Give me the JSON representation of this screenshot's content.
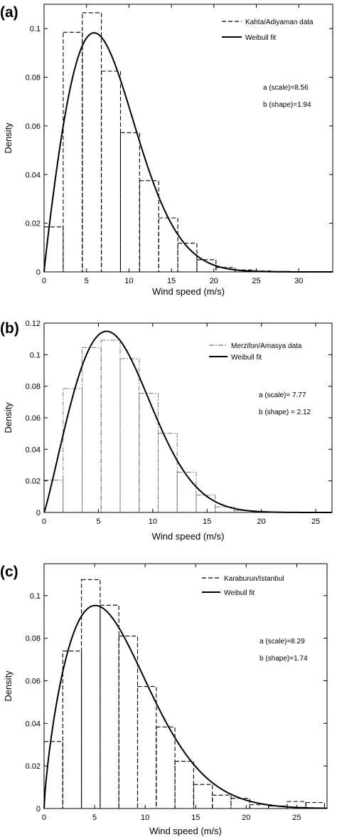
{
  "chart_data": [
    {
      "type": "bar",
      "panel_label": "(a)",
      "xlabel": "Wind speed (m/s)",
      "ylabel": "Density",
      "xlim": [
        0,
        34
      ],
      "ylim": [
        0,
        0.11
      ],
      "xticks": [
        0,
        5,
        10,
        15,
        20,
        25,
        30
      ],
      "yticks": [
        0,
        0.02,
        0.04,
        0.06,
        0.08,
        0.1
      ],
      "ytick_labels": [
        "0",
        "0.02",
        "0.04",
        "0.06",
        "0.08",
        "0.1"
      ],
      "bin_edges": [
        0,
        2.25,
        4.5,
        6.75,
        9.0,
        11.25,
        13.5,
        15.75,
        18.0,
        20.25,
        22.5,
        24.75,
        27.0,
        29.25,
        31.5
      ],
      "bar_values": [
        0.0185,
        0.0985,
        0.1065,
        0.0825,
        0.0572,
        0.0375,
        0.0222,
        0.0118,
        0.005,
        0.0018,
        0.0008,
        0.0004,
        0.0002,
        0.0001
      ],
      "fit": {
        "scale": 8.56,
        "shape": 1.94
      },
      "legend": {
        "data_label": "Kahta/Adiyaman data",
        "fit_label": "Weibull fit",
        "placement": "top-right"
      },
      "annotations": [
        "a (scale)=8.56",
        "b (shape)=1.94"
      ],
      "grid": false
    },
    {
      "type": "bar",
      "panel_label": "(b)",
      "xlabel": "Wind speed (m/s)",
      "ylabel": "Density",
      "xlim": [
        0,
        26.5
      ],
      "ylim": [
        0,
        0.12
      ],
      "xticks": [
        0,
        5,
        10,
        15,
        20,
        25
      ],
      "yticks": [
        0,
        0.02,
        0.04,
        0.06,
        0.08,
        0.1,
        0.12
      ],
      "ytick_labels": [
        "0",
        "0.02",
        "0.04",
        "0.06",
        "0.08",
        "0.1",
        "0.12"
      ],
      "bin_edges": [
        0,
        1.75,
        3.5,
        5.25,
        7.0,
        8.75,
        10.5,
        12.25,
        14.0,
        15.75,
        17.5,
        19.25,
        21.0,
        22.75,
        24.5
      ],
      "bar_values": [
        0.0205,
        0.0785,
        0.1045,
        0.1092,
        0.0975,
        0.0755,
        0.0502,
        0.0255,
        0.011,
        0.0035,
        0.0012,
        0.0005,
        0.0002,
        0.0001
      ],
      "fit": {
        "scale": 7.77,
        "shape": 2.12
      },
      "legend": {
        "data_label": "Merzifon/Amasya data",
        "fit_label": "Weibull fit",
        "placement": "top-right"
      },
      "annotations": [
        "a (scale)= 7.77",
        "b (shape) = 2.12"
      ],
      "grid": false
    },
    {
      "type": "bar",
      "panel_label": "(c)",
      "xlabel": "Wind speed (m/s)",
      "ylabel": "Density",
      "xlim": [
        0,
        28
      ],
      "ylim": [
        0,
        0.115
      ],
      "xticks": [
        0,
        5,
        10,
        15,
        20,
        25
      ],
      "yticks": [
        0,
        0.02,
        0.04,
        0.06,
        0.08,
        0.1
      ],
      "ytick_labels": [
        "0",
        "0.02",
        "0.04",
        "0.06",
        "0.08",
        "0.1"
      ],
      "bin_edges": [
        0,
        1.85,
        3.7,
        5.55,
        7.4,
        9.25,
        11.1,
        12.95,
        14.8,
        16.65,
        18.5,
        20.35,
        22.2,
        24.05,
        25.9,
        27.75
      ],
      "bar_values": [
        0.0315,
        0.074,
        0.1075,
        0.0955,
        0.081,
        0.0573,
        0.0383,
        0.0222,
        0.0113,
        0.0063,
        0.0048,
        0.0018,
        0.0012,
        0.0033,
        0.0028
      ],
      "fit": {
        "scale": 8.29,
        "shape": 1.74
      },
      "legend": {
        "data_label": "Karaburun/Istanbul",
        "fit_label": "Weibull fit",
        "placement": "top-right"
      },
      "annotations": [
        "a (scale)=8.29",
        "b (shape)=1.74"
      ],
      "grid": false
    }
  ]
}
